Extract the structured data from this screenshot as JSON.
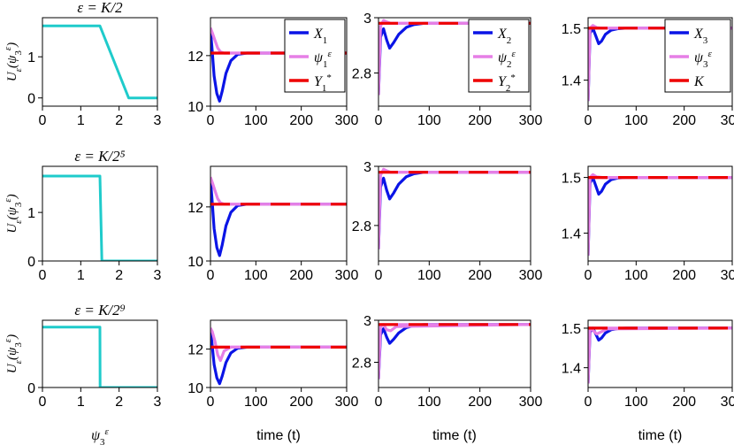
{
  "colors": {
    "control": "#1fcbcb",
    "X": "#0a14e6",
    "psi": "#e67fe6",
    "Y": "#ee0000"
  },
  "labels": {
    "control_ylabel": "Uε(ψ3ε)",
    "control_xlabel": "ψ3ε",
    "time_xlabel": "time (t)"
  },
  "chart_data": [
    {
      "type": "line",
      "panel": "control-row1",
      "title": "ε = K/2",
      "xlim": [
        0,
        3
      ],
      "ylim": [
        -0.2,
        1.95
      ],
      "xticks": [
        0,
        1,
        2,
        3
      ],
      "yticks": [
        0,
        1
      ],
      "series": [
        {
          "color": "control",
          "x": [
            0,
            1.5,
            2.25,
            3
          ],
          "y": [
            1.75,
            1.75,
            0,
            0
          ]
        }
      ]
    },
    {
      "type": "line",
      "panel": "X1-row1",
      "xlim": [
        0,
        300
      ],
      "ylim": [
        10,
        13.5
      ],
      "xticks": [
        0,
        100,
        200,
        300
      ],
      "yticks": [
        10,
        12
      ],
      "legend": {
        "position": "top-right",
        "entries": [
          "X1",
          "ψ1ε",
          "Y1*"
        ]
      },
      "series": [
        {
          "legend": "X1",
          "color": "X",
          "x": [
            0,
            3,
            8,
            14,
            20,
            26,
            34,
            45,
            60,
            80,
            300
          ],
          "y": [
            13.0,
            12.4,
            11.2,
            10.5,
            10.2,
            10.6,
            11.3,
            11.8,
            12.05,
            12.1,
            12.1
          ]
        },
        {
          "legend": "ψ1ε",
          "color": "psi",
          "x": [
            0,
            4,
            10,
            16,
            22,
            30,
            45,
            300
          ],
          "y": [
            13.1,
            12.9,
            12.6,
            12.3,
            12.15,
            12.1,
            12.1,
            12.1
          ]
        },
        {
          "legend": "Y1*",
          "color": "Y",
          "dashed": true,
          "x": [
            0,
            300
          ],
          "y": [
            12.1,
            12.1
          ]
        }
      ]
    },
    {
      "type": "line",
      "panel": "X2-row1",
      "xlim": [
        0,
        300
      ],
      "ylim": [
        2.68,
        3.0
      ],
      "xticks": [
        0,
        100,
        200,
        300
      ],
      "yticks": [
        2.8,
        3
      ],
      "legend": {
        "position": "top-right",
        "entries": [
          "X2",
          "ψ2ε",
          "Y2*"
        ]
      },
      "series": [
        {
          "legend": "X2",
          "color": "X",
          "x": [
            0,
            4,
            10,
            16,
            22,
            30,
            40,
            55,
            70,
            90,
            300
          ],
          "y": [
            2.72,
            2.93,
            2.96,
            2.92,
            2.89,
            2.91,
            2.94,
            2.965,
            2.975,
            2.98,
            2.98
          ]
        },
        {
          "legend": "ψ2ε",
          "color": "psi",
          "x": [
            0,
            4,
            10,
            16,
            24,
            35,
            300
          ],
          "y": [
            2.72,
            2.97,
            2.99,
            2.985,
            2.98,
            2.98,
            2.98
          ]
        },
        {
          "legend": "Y2*",
          "color": "Y",
          "dashed": true,
          "x": [
            0,
            300
          ],
          "y": [
            2.98,
            2.98
          ]
        }
      ]
    },
    {
      "type": "line",
      "panel": "X3-row1",
      "xlim": [
        0,
        300
      ],
      "ylim": [
        1.35,
        1.52
      ],
      "xticks": [
        0,
        100,
        200,
        300
      ],
      "yticks": [
        1.4,
        1.5
      ],
      "legend": {
        "position": "top-right",
        "entries": [
          "X3",
          "ψ3ε",
          "K"
        ]
      },
      "series": [
        {
          "legend": "X3",
          "color": "X",
          "x": [
            0,
            4,
            10,
            16,
            22,
            28,
            36,
            48,
            62,
            80,
            300
          ],
          "y": [
            1.36,
            1.49,
            1.5,
            1.485,
            1.47,
            1.475,
            1.488,
            1.496,
            1.499,
            1.5,
            1.5
          ]
        },
        {
          "legend": "ψ3ε",
          "color": "psi",
          "x": [
            0,
            4,
            10,
            18,
            30,
            300
          ],
          "y": [
            1.36,
            1.5,
            1.505,
            1.501,
            1.5,
            1.5
          ]
        },
        {
          "legend": "K",
          "color": "Y",
          "dashed": true,
          "x": [
            0,
            300
          ],
          "y": [
            1.5,
            1.5
          ]
        }
      ]
    },
    {
      "type": "line",
      "panel": "control-row2",
      "title": "ε = K/2⁵",
      "xlim": [
        0,
        3
      ],
      "ylim": [
        0,
        1.95
      ],
      "xticks": [
        0,
        1,
        2,
        3
      ],
      "yticks": [
        0,
        1
      ],
      "series": [
        {
          "color": "control",
          "x": [
            0,
            1.5,
            1.55,
            3
          ],
          "y": [
            1.75,
            1.75,
            0,
            0
          ]
        }
      ]
    },
    {
      "type": "line",
      "panel": "X1-row2",
      "xlim": [
        0,
        300
      ],
      "ylim": [
        10,
        13.5
      ],
      "xticks": [
        0,
        100,
        200,
        300
      ],
      "yticks": [
        10,
        12
      ],
      "series": [
        {
          "color": "X",
          "x": [
            0,
            3,
            8,
            14,
            20,
            26,
            34,
            45,
            60,
            80,
            300
          ],
          "y": [
            13.0,
            12.4,
            11.2,
            10.5,
            10.2,
            10.6,
            11.3,
            11.8,
            12.05,
            12.1,
            12.1
          ]
        },
        {
          "color": "psi",
          "x": [
            0,
            4,
            10,
            16,
            22,
            30,
            45,
            300
          ],
          "y": [
            13.1,
            12.9,
            12.6,
            12.3,
            12.15,
            12.1,
            12.1,
            12.1
          ]
        },
        {
          "color": "Y",
          "dashed": true,
          "x": [
            0,
            300
          ],
          "y": [
            12.1,
            12.1
          ]
        }
      ]
    },
    {
      "type": "line",
      "panel": "X2-row2",
      "xlim": [
        0,
        300
      ],
      "ylim": [
        2.68,
        3.0
      ],
      "xticks": [
        0,
        100,
        200,
        300
      ],
      "yticks": [
        2.8,
        3
      ],
      "series": [
        {
          "color": "X",
          "x": [
            0,
            4,
            10,
            16,
            22,
            30,
            40,
            55,
            70,
            90,
            300
          ],
          "y": [
            2.72,
            2.93,
            2.96,
            2.92,
            2.89,
            2.91,
            2.94,
            2.965,
            2.975,
            2.98,
            2.98
          ]
        },
        {
          "color": "psi",
          "x": [
            0,
            4,
            10,
            16,
            24,
            35,
            300
          ],
          "y": [
            2.72,
            2.97,
            2.99,
            2.985,
            2.98,
            2.98,
            2.98
          ]
        },
        {
          "color": "Y",
          "dashed": true,
          "x": [
            0,
            300
          ],
          "y": [
            2.98,
            2.98
          ]
        }
      ]
    },
    {
      "type": "line",
      "panel": "X3-row2",
      "xlim": [
        0,
        300
      ],
      "ylim": [
        1.35,
        1.52
      ],
      "xticks": [
        0,
        100,
        200,
        300
      ],
      "yticks": [
        1.4,
        1.5
      ],
      "series": [
        {
          "color": "X",
          "x": [
            0,
            4,
            10,
            16,
            22,
            28,
            36,
            48,
            62,
            80,
            300
          ],
          "y": [
            1.36,
            1.49,
            1.5,
            1.485,
            1.47,
            1.475,
            1.488,
            1.496,
            1.499,
            1.5,
            1.5
          ]
        },
        {
          "color": "psi",
          "x": [
            0,
            4,
            10,
            18,
            30,
            300
          ],
          "y": [
            1.36,
            1.5,
            1.505,
            1.501,
            1.5,
            1.5
          ]
        },
        {
          "color": "Y",
          "dashed": true,
          "x": [
            0,
            300
          ],
          "y": [
            1.5,
            1.5
          ]
        }
      ]
    },
    {
      "type": "line",
      "panel": "control-row3",
      "title": "ε = K/2⁹",
      "xlim": [
        0,
        3
      ],
      "ylim": [
        0,
        1.95
      ],
      "xticks": [
        0,
        1,
        2,
        3
      ],
      "yticks": [
        0
      ],
      "series": [
        {
          "color": "control",
          "x": [
            0,
            1.5,
            1.505,
            3
          ],
          "y": [
            1.75,
            1.75,
            0,
            0
          ]
        }
      ]
    },
    {
      "type": "line",
      "panel": "X1-row3",
      "xlim": [
        0,
        300
      ],
      "ylim": [
        10,
        13.5
      ],
      "xticks": [
        0,
        100,
        200,
        300
      ],
      "yticks": [
        10,
        12
      ],
      "series": [
        {
          "color": "X",
          "x": [
            0,
            3,
            8,
            14,
            20,
            26,
            34,
            45,
            60,
            80,
            300
          ],
          "y": [
            13.0,
            12.4,
            11.2,
            10.5,
            10.2,
            10.6,
            11.3,
            11.8,
            12.05,
            12.1,
            12.1
          ]
        },
        {
          "color": "psi",
          "x": [
            0,
            4,
            10,
            16,
            22,
            30,
            45,
            300
          ],
          "y": [
            13.1,
            12.9,
            12.4,
            11.7,
            11.4,
            11.9,
            12.1,
            12.1
          ]
        },
        {
          "color": "Y",
          "dashed": true,
          "x": [
            0,
            300
          ],
          "y": [
            12.1,
            12.1
          ]
        }
      ]
    },
    {
      "type": "line",
      "panel": "X2-row3",
      "xlim": [
        0,
        300
      ],
      "ylim": [
        2.68,
        3.0
      ],
      "xticks": [
        0,
        100,
        200,
        300
      ],
      "yticks": [
        2.8,
        3
      ],
      "series": [
        {
          "color": "X",
          "x": [
            0,
            4,
            10,
            16,
            22,
            30,
            40,
            55,
            70,
            90,
            300
          ],
          "y": [
            2.72,
            2.93,
            2.96,
            2.92,
            2.89,
            2.91,
            2.94,
            2.965,
            2.975,
            2.98,
            2.98
          ]
        },
        {
          "color": "psi",
          "x": [
            0,
            4,
            10,
            16,
            24,
            35,
            300
          ],
          "y": [
            2.72,
            2.97,
            2.98,
            2.955,
            2.95,
            2.97,
            2.98
          ]
        },
        {
          "color": "Y",
          "dashed": true,
          "x": [
            0,
            300
          ],
          "y": [
            2.98,
            2.98
          ]
        }
      ]
    },
    {
      "type": "line",
      "panel": "X3-row3",
      "xlim": [
        0,
        300
      ],
      "ylim": [
        1.35,
        1.52
      ],
      "xticks": [
        0,
        100,
        200,
        300
      ],
      "yticks": [
        1.4,
        1.5
      ],
      "series": [
        {
          "color": "X",
          "x": [
            0,
            4,
            10,
            16,
            22,
            28,
            36,
            48,
            62,
            80,
            300
          ],
          "y": [
            1.36,
            1.49,
            1.5,
            1.485,
            1.47,
            1.475,
            1.488,
            1.496,
            1.499,
            1.5,
            1.5
          ]
        },
        {
          "color": "psi",
          "x": [
            0,
            4,
            10,
            18,
            26,
            40,
            300
          ],
          "y": [
            1.36,
            1.5,
            1.495,
            1.485,
            1.49,
            1.498,
            1.5
          ]
        },
        {
          "color": "Y",
          "dashed": true,
          "x": [
            0,
            300
          ],
          "y": [
            1.5,
            1.5
          ]
        }
      ]
    }
  ]
}
